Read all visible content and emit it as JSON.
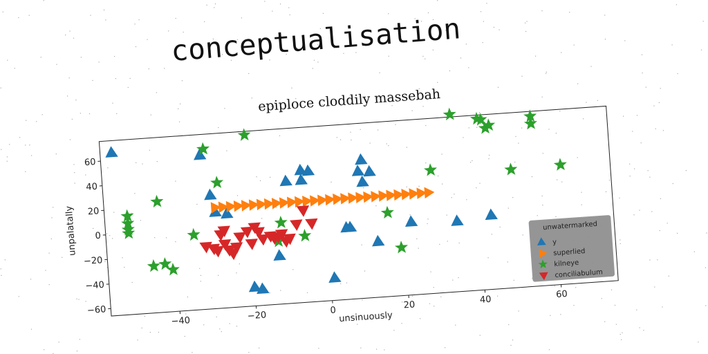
{
  "page": {
    "title": "conceptualisation"
  },
  "chart_data": {
    "type": "scatter",
    "title": "epiploce cloddily massebah",
    "xlabel": "unsinuously",
    "ylabel": "unpalatally",
    "xlim": [
      -58,
      75
    ],
    "ylim": [
      -66,
      76
    ],
    "xticks": [
      -40,
      -20,
      0,
      20,
      40,
      60
    ],
    "yticks": [
      -60,
      -40,
      -20,
      0,
      20,
      40,
      60
    ],
    "grid": false,
    "legend": {
      "title": "unwatermarked",
      "position": "lower-right"
    },
    "series": [
      {
        "name": "y",
        "marker": "triangle-up",
        "color": "#1f77b4",
        "points": [
          [
            -55,
            66
          ],
          [
            -32,
            59
          ],
          [
            -30,
            26
          ],
          [
            -29,
            12
          ],
          [
            -26,
            10
          ],
          [
            -20,
            -51
          ],
          [
            -18,
            -53
          ],
          [
            -13,
            -27
          ],
          [
            -10,
            33
          ],
          [
            -6,
            41
          ],
          [
            -6,
            33
          ],
          [
            -4,
            40
          ],
          [
            1,
            -48
          ],
          [
            5,
            -8
          ],
          [
            6,
            -8
          ],
          [
            9,
            37
          ],
          [
            10,
            28
          ],
          [
            10,
            46
          ],
          [
            12,
            36
          ],
          [
            13,
            -21
          ],
          [
            22,
            -7
          ],
          [
            34,
            -9
          ],
          [
            43,
            -6
          ]
        ]
      },
      {
        "name": "superlied",
        "marker": "triangle-right",
        "color": "#ff7f0e",
        "points": [
          [
            -29,
            16
          ],
          [
            -27,
            16
          ],
          [
            -25,
            16
          ],
          [
            -23,
            16
          ],
          [
            -21,
            16
          ],
          [
            -19,
            16
          ],
          [
            -17,
            16
          ],
          [
            -15,
            16
          ],
          [
            -13,
            16
          ],
          [
            -11,
            16
          ],
          [
            -9,
            16
          ],
          [
            -7,
            16
          ],
          [
            -5,
            16
          ],
          [
            -3,
            16
          ],
          [
            -1,
            16
          ],
          [
            1,
            16
          ],
          [
            3,
            16
          ],
          [
            5,
            16
          ],
          [
            7,
            16
          ],
          [
            9,
            16
          ],
          [
            11,
            16
          ],
          [
            13,
            16
          ],
          [
            15,
            16
          ],
          [
            17,
            16
          ],
          [
            19,
            16
          ],
          [
            21,
            16
          ],
          [
            23,
            16
          ],
          [
            25,
            16
          ],
          [
            27,
            16
          ]
        ]
      },
      {
        "name": "kilneye",
        "marker": "star",
        "color": "#2ca02c",
        "points": [
          [
            -52,
            14
          ],
          [
            -52,
            8
          ],
          [
            -52,
            3
          ],
          [
            -52,
            0
          ],
          [
            -46,
            -28
          ],
          [
            -44,
            24
          ],
          [
            -43,
            -27
          ],
          [
            -41,
            -32
          ],
          [
            -35,
            -5
          ],
          [
            -31,
            64
          ],
          [
            -28,
            36
          ],
          [
            -20,
            73
          ],
          [
            -13,
            -15
          ],
          [
            -12,
            0
          ],
          [
            -6,
            -12
          ],
          [
            16,
            2
          ],
          [
            19,
            -27
          ],
          [
            28,
            34
          ],
          [
            34,
            78
          ],
          [
            41,
            73
          ],
          [
            42,
            72
          ],
          [
            43,
            65
          ],
          [
            44,
            67
          ],
          [
            49,
            30
          ],
          [
            55,
            72
          ],
          [
            55,
            66
          ],
          [
            62,
            31
          ]
        ]
      },
      {
        "name": "conciliabulum",
        "marker": "triangle-down",
        "color": "#d62728",
        "points": [
          [
            -32,
            -15
          ],
          [
            -30,
            -17
          ],
          [
            -29,
            -19
          ],
          [
            -28,
            -6
          ],
          [
            -27,
            -14
          ],
          [
            -27,
            -3
          ],
          [
            -26,
            -19
          ],
          [
            -25,
            -22
          ],
          [
            -24,
            -17
          ],
          [
            -23,
            -9
          ],
          [
            -21,
            -5
          ],
          [
            -20,
            -15
          ],
          [
            -19,
            -2
          ],
          [
            -18,
            -6
          ],
          [
            -17,
            -12
          ],
          [
            -15,
            -10
          ],
          [
            -14,
            -12
          ],
          [
            -13,
            -11
          ],
          [
            -12,
            -9
          ],
          [
            -11,
            -15
          ],
          [
            -10,
            -13
          ],
          [
            -8,
            -2
          ],
          [
            -6,
            9
          ],
          [
            -4,
            -2
          ]
        ]
      }
    ]
  }
}
